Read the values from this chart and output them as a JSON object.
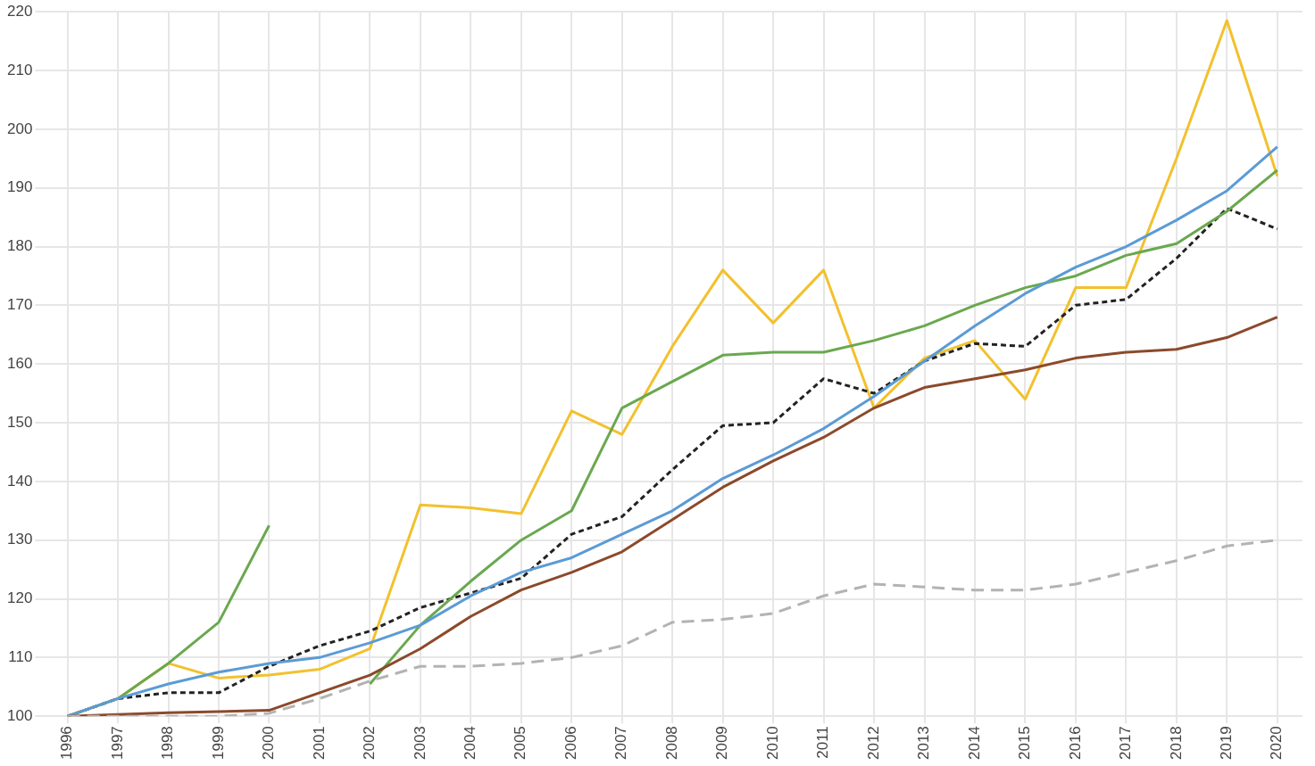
{
  "chart_data": {
    "type": "line",
    "categories": [
      "1996",
      "1997",
      "1998",
      "1999",
      "2000",
      "2001",
      "2002",
      "2003",
      "2004",
      "2005",
      "2006",
      "2007",
      "2008",
      "2009",
      "2010",
      "2011",
      "2012",
      "2013",
      "2014",
      "2015",
      "2016",
      "2017",
      "2018",
      "2019",
      "2020"
    ],
    "series": [
      {
        "color": "#b3b3b3",
        "line_style": "dashed",
        "values": [
          100,
          100,
          100,
          100,
          100.5,
          103,
          106,
          108.5,
          108.5,
          109,
          110,
          112,
          116,
          116.5,
          117.5,
          120.5,
          122.5,
          122,
          121.5,
          121.5,
          122.5,
          124.5,
          126.5,
          129,
          130
        ]
      },
      {
        "color": "#8b4a2b",
        "line_style": "solid",
        "values": [
          100,
          100.3,
          100.6,
          100.8,
          101,
          104,
          107,
          111.5,
          117,
          121.5,
          124.5,
          128,
          133.5,
          139,
          143.5,
          147.5,
          152.5,
          156,
          157.5,
          159,
          161,
          162,
          162.5,
          164.5,
          168
        ]
      },
      {
        "color": "#5b9bd5",
        "line_style": "solid",
        "values": [
          100,
          103,
          105.5,
          107.5,
          109,
          110,
          112.5,
          115.5,
          120.5,
          124.5,
          127,
          131,
          135,
          140.5,
          144.5,
          149,
          154.5,
          160.5,
          166.5,
          172,
          176.5,
          180,
          184.5,
          189.5,
          197
        ]
      },
      {
        "color": "#6aa84f",
        "line_style": "solid",
        "values": [
          100,
          103,
          109,
          116,
          132.5,
          null,
          105.5,
          115.5,
          123,
          130,
          135,
          152.5,
          157,
          161.5,
          162,
          162,
          164,
          166.5,
          170,
          173,
          175,
          178.5,
          180.5,
          186,
          193
        ]
      },
      {
        "color": "#222222",
        "line_style": "dotted",
        "values": [
          100,
          103,
          104,
          104,
          108.5,
          112,
          114.5,
          118.5,
          121,
          123.5,
          131,
          134,
          142,
          149.5,
          150,
          157.5,
          155,
          160.5,
          163.5,
          163,
          170,
          171,
          178,
          186.5,
          183
        ]
      },
      {
        "color": "#f2c12e",
        "line_style": "solid",
        "values": [
          100,
          103,
          109,
          106.5,
          107,
          108,
          111.5,
          136,
          135.5,
          134.5,
          152,
          148,
          163,
          176,
          167,
          176,
          152.5,
          161,
          164,
          154,
          173,
          173,
          195,
          218.5,
          192
        ]
      }
    ],
    "ylim": [
      100,
      220
    ],
    "yticks": [
      100,
      110,
      120,
      130,
      140,
      150,
      160,
      170,
      180,
      190,
      200,
      210,
      220
    ],
    "grid": true,
    "legend": false,
    "marker": "none"
  }
}
